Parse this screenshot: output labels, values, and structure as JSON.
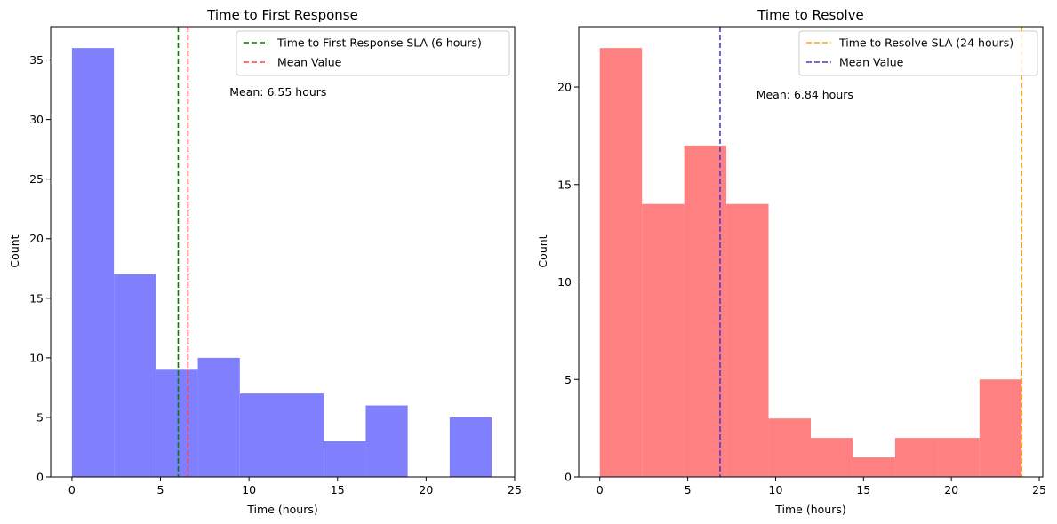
{
  "chart_data": [
    {
      "type": "histogram",
      "title": "Time to First Response",
      "xlabel": "Time (hours)",
      "ylabel": "Count",
      "xlim": [
        -1.2,
        25
      ],
      "ylim": [
        0,
        37.8
      ],
      "xticks": [
        0,
        5,
        10,
        15,
        20,
        25
      ],
      "yticks": [
        0,
        5,
        10,
        15,
        20,
        25,
        30,
        35
      ],
      "bar_color": "#8080ff",
      "bins": [
        {
          "start": 0.0,
          "end": 2.37,
          "count": 36
        },
        {
          "start": 2.37,
          "end": 4.74,
          "count": 17
        },
        {
          "start": 4.74,
          "end": 7.11,
          "count": 9
        },
        {
          "start": 7.11,
          "end": 9.48,
          "count": 10
        },
        {
          "start": 9.48,
          "end": 11.85,
          "count": 7
        },
        {
          "start": 11.85,
          "end": 14.22,
          "count": 7
        },
        {
          "start": 14.22,
          "end": 16.59,
          "count": 3
        },
        {
          "start": 16.59,
          "end": 18.96,
          "count": 6
        },
        {
          "start": 18.96,
          "end": 21.33,
          "count": 0
        },
        {
          "start": 21.33,
          "end": 23.7,
          "count": 5
        }
      ],
      "vlines": [
        {
          "x": 6,
          "color": "#008000",
          "label": "Time to First Response SLA (6 hours)"
        },
        {
          "x": 6.55,
          "color": "#ff4040",
          "label": "Mean Value"
        }
      ],
      "legend_position": "top-right",
      "annotation": {
        "text": "Mean: 6.55 hours",
        "x": 8.9,
        "y": 32.3
      }
    },
    {
      "type": "histogram",
      "title": "Time to Resolve",
      "xlabel": "Time (hours)",
      "ylabel": "Count",
      "xlim": [
        -1.2,
        25.2
      ],
      "ylim": [
        0,
        23.1
      ],
      "xticks": [
        0,
        5,
        10,
        15,
        20,
        25
      ],
      "yticks": [
        0,
        5,
        10,
        15,
        20
      ],
      "bar_color": "#ff8080",
      "bins": [
        {
          "start": 0.0,
          "end": 2.4,
          "count": 22
        },
        {
          "start": 2.4,
          "end": 4.8,
          "count": 14
        },
        {
          "start": 4.8,
          "end": 7.2,
          "count": 17
        },
        {
          "start": 7.2,
          "end": 9.6,
          "count": 14
        },
        {
          "start": 9.6,
          "end": 12.0,
          "count": 3
        },
        {
          "start": 12.0,
          "end": 14.4,
          "count": 2
        },
        {
          "start": 14.4,
          "end": 16.8,
          "count": 1
        },
        {
          "start": 16.8,
          "end": 19.2,
          "count": 2
        },
        {
          "start": 19.2,
          "end": 21.6,
          "count": 2
        },
        {
          "start": 21.6,
          "end": 24.0,
          "count": 5
        }
      ],
      "vlines": [
        {
          "x": 24,
          "color": "#ffa500",
          "label": "Time to Resolve SLA (24 hours)"
        },
        {
          "x": 6.84,
          "color": "#4040d0",
          "label": "Mean Value"
        }
      ],
      "legend_position": "top-right",
      "annotation": {
        "text": "Mean: 6.84 hours",
        "x": 8.9,
        "y": 19.6
      }
    }
  ]
}
